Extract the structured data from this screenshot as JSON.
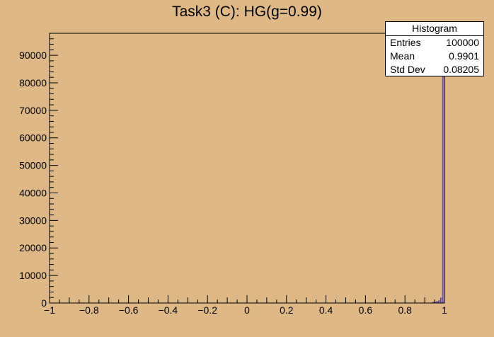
{
  "chart_data": {
    "type": "bar",
    "title": "Task3 (C): HG(g=0.99)",
    "xlabel": "",
    "ylabel": "",
    "xlim": [
      -1,
      1
    ],
    "ylim": [
      0,
      98000
    ],
    "x_ticks": [
      "−1",
      "−0.8",
      "−0.6",
      "−0.4",
      "−0.2",
      "0",
      "0.2",
      "0.4",
      "0.6",
      "0.8",
      "1"
    ],
    "x_tick_values": [
      -1,
      -0.8,
      -0.6,
      -0.4,
      -0.2,
      0,
      0.2,
      0.4,
      0.6,
      0.8,
      1
    ],
    "y_ticks": [
      "0",
      "10000",
      "20000",
      "30000",
      "40000",
      "50000",
      "60000",
      "70000",
      "80000",
      "90000"
    ],
    "y_tick_values": [
      0,
      10000,
      20000,
      30000,
      40000,
      50000,
      60000,
      70000,
      80000,
      90000
    ],
    "bins": {
      "x": [
        0.94,
        0.95,
        0.96,
        0.97,
        0.98,
        0.99
      ],
      "width": 0.01,
      "values": [
        250,
        350,
        500,
        800,
        1800,
        92000
      ]
    },
    "bar_color": "#b07cb0",
    "line_color": "#3f3f8f",
    "legend": {
      "position": "top-right",
      "title": "Histogram",
      "entries": [
        {
          "label": "Entries",
          "value": "100000"
        },
        {
          "label": "Mean",
          "value": "0.9901"
        },
        {
          "label": "Std Dev",
          "value": "0.08205"
        }
      ]
    }
  },
  "colors": {
    "background": "#deb887",
    "frame": "#000000"
  }
}
